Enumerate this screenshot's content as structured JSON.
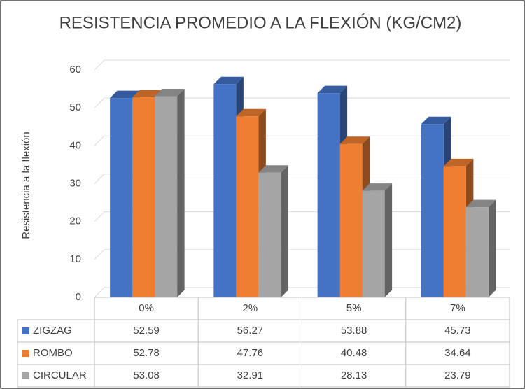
{
  "chart_data": {
    "type": "bar3d",
    "title": "RESISTENCIA PROMEDIO A LA FLEXIÓN (KG/CM2)",
    "y_label": "Resistencia a la flexión",
    "categories": [
      "0%",
      "2%",
      "5%",
      "7%"
    ],
    "series": [
      {
        "name": "ZIGZAG",
        "color": "#4472c4",
        "values": [
          52.59,
          56.27,
          53.88,
          45.73
        ]
      },
      {
        "name": "ROMBO",
        "color": "#ed7d31",
        "values": [
          52.78,
          47.76,
          40.48,
          34.64
        ]
      },
      {
        "name": "CIRCULAR",
        "color": "#a5a5a5",
        "values": [
          53.08,
          32.91,
          28.13,
          23.79
        ]
      }
    ],
    "ylim": [
      0,
      60
    ],
    "yticks": [
      0,
      10,
      20,
      30,
      40,
      50,
      60
    ],
    "grid": true,
    "data_table": true
  }
}
